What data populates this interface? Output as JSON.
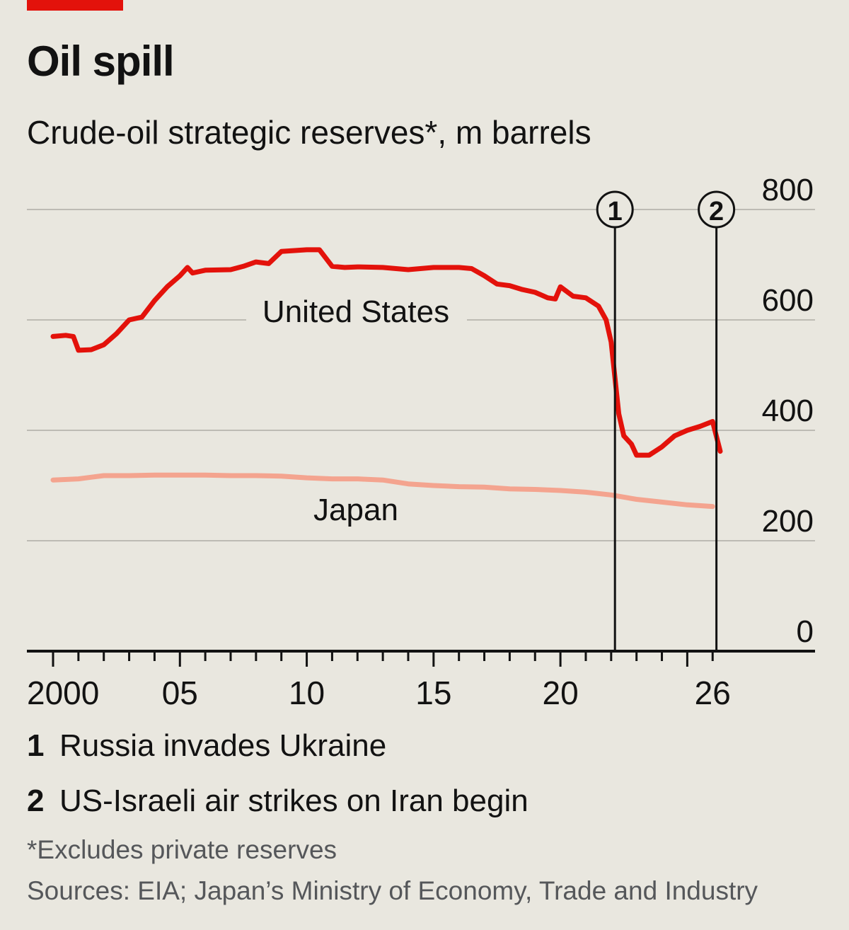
{
  "header": {
    "title": "Oil spill",
    "subtitle": "Crude-oil strategic reserves*, m barrels"
  },
  "colors": {
    "us": "#e3120b",
    "japan": "#f4a48f",
    "grid": "#bdbbb4",
    "axis": "#121212",
    "background": "#e9e7df",
    "tag": "#e3120b"
  },
  "chart_data": {
    "type": "line",
    "title": "Crude-oil strategic reserves*, m barrels",
    "xlabel": "",
    "ylabel": "m barrels",
    "xlim": [
      1999.5,
      2027.5
    ],
    "ylim": [
      0,
      800
    ],
    "y_ticks": [
      0,
      200,
      400,
      600,
      800
    ],
    "x_tick_labels": [
      {
        "year": 2000,
        "label": "2000"
      },
      {
        "year": 2005,
        "label": "05"
      },
      {
        "year": 2010,
        "label": "10"
      },
      {
        "year": 2015,
        "label": "15"
      },
      {
        "year": 2020,
        "label": "20"
      },
      {
        "year": 2026,
        "label": "26"
      }
    ],
    "grid": true,
    "y_axis_side": "right",
    "series": [
      {
        "name": "United States",
        "x": [
          2000.0,
          2000.5,
          2000.8,
          2001.0,
          2001.5,
          2002.0,
          2002.5,
          2003.0,
          2003.5,
          2004.0,
          2004.5,
          2005.0,
          2005.3,
          2005.5,
          2006.0,
          2007.0,
          2007.5,
          2008.0,
          2008.5,
          2009.0,
          2010.0,
          2010.5,
          2011.0,
          2011.5,
          2012.0,
          2013.0,
          2014.0,
          2015.0,
          2016.0,
          2016.5,
          2017.0,
          2017.5,
          2018.0,
          2018.5,
          2019.0,
          2019.5,
          2019.8,
          2020.0,
          2020.5,
          2021.0,
          2021.5,
          2021.8,
          2022.0,
          2022.3,
          2022.5,
          2022.8,
          2023.0,
          2023.5,
          2024.0,
          2024.5,
          2025.0,
          2025.5,
          2026.0,
          2026.3
        ],
        "values": [
          570,
          572,
          570,
          545,
          546,
          555,
          575,
          600,
          605,
          635,
          660,
          680,
          695,
          685,
          690,
          691,
          697,
          705,
          702,
          724,
          727,
          727,
          697,
          695,
          696,
          695,
          691,
          695,
          695,
          693,
          680,
          665,
          662,
          655,
          650,
          640,
          638,
          660,
          643,
          640,
          625,
          600,
          560,
          430,
          390,
          375,
          355,
          355,
          370,
          390,
          400,
          407,
          416,
          362
        ]
      },
      {
        "name": "Japan",
        "x": [
          2000.0,
          2001.0,
          2002.0,
          2003.0,
          2004.0,
          2005.0,
          2006.0,
          2007.0,
          2008.0,
          2009.0,
          2010.0,
          2011.0,
          2012.0,
          2013.0,
          2014.0,
          2015.0,
          2016.0,
          2017.0,
          2018.0,
          2019.0,
          2020.0,
          2021.0,
          2022.0,
          2023.0,
          2024.0,
          2025.0,
          2026.0
        ],
        "values": [
          310,
          312,
          318,
          318,
          319,
          319,
          319,
          318,
          318,
          317,
          314,
          312,
          312,
          310,
          303,
          300,
          298,
          297,
          294,
          293,
          291,
          288,
          283,
          275,
          270,
          265,
          262
        ]
      }
    ],
    "annotations": [
      {
        "marker": "1",
        "year": 2022.15,
        "text": "Russia invades Ukraine"
      },
      {
        "marker": "2",
        "year": 2026.15,
        "text": "US-Israeli air strikes on Iran begin"
      }
    ],
    "series_labels": {
      "us": "United States",
      "japan": "Japan"
    }
  },
  "footnote": "*Excludes private reserves",
  "sources": "Sources: EIA; Japan’s Ministry of Economy, Trade and Industry"
}
